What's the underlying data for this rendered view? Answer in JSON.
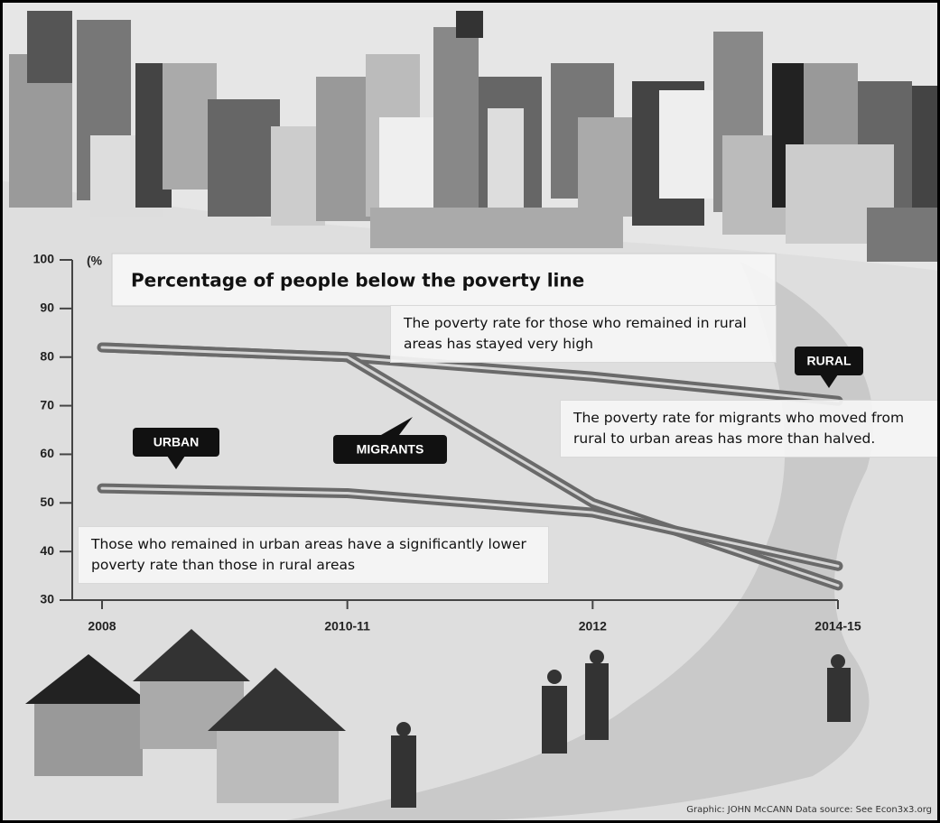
{
  "chart_data": {
    "type": "line",
    "title": "Percentage of people below the poverty line",
    "y_label": "(%",
    "credit": "Graphic: JOHN McCANN  Data source: See Econ3x3.org",
    "categories": [
      "2008",
      "2010-11",
      "2012",
      "2014-15"
    ],
    "series": [
      {
        "name": "RURAL",
        "color": "#6a6a6a",
        "values": [
          82,
          80,
          76,
          71
        ]
      },
      {
        "name": "MIGRANTS",
        "color": "#6a6a6a",
        "values": [
          82,
          80,
          50,
          33
        ]
      },
      {
        "name": "URBAN",
        "color": "#6a6a6a",
        "values": [
          53,
          52,
          48,
          37
        ]
      }
    ],
    "ylim": [
      30,
      100
    ],
    "yticks": [
      30,
      40,
      50,
      60,
      70,
      80,
      90,
      100
    ],
    "annotations": [
      "The poverty rate for those who remained in rural areas has stayed very high",
      "The poverty rate for migrants who moved from rural to urban areas has more than halved.",
      "Those who remained in urban areas have a significantly lower poverty rate than those in rural areas"
    ]
  }
}
